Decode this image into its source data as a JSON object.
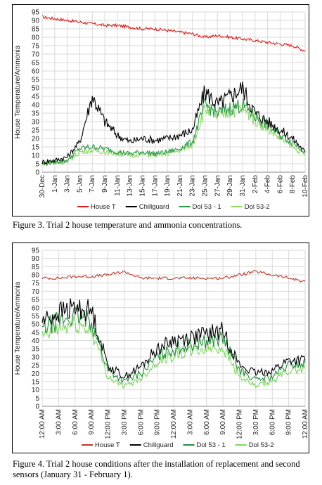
{
  "chart_data": [
    {
      "type": "line",
      "ylabel": "House Temperature/Ammonia",
      "xlabel": "",
      "ylim": [
        0,
        95
      ],
      "yticks": [
        0,
        5,
        10,
        15,
        20,
        25,
        30,
        35,
        40,
        45,
        50,
        55,
        60,
        65,
        70,
        75,
        80,
        85,
        90,
        95
      ],
      "categories": [
        "30-Dec",
        "1-Jan",
        "3-Jan",
        "5-Jan",
        "7-Jan",
        "9-Jan",
        "11-Jan",
        "13-Jan",
        "15-Jan",
        "17-Jan",
        "19-Jan",
        "21-Jan",
        "23-Jan",
        "25-Jan",
        "27-Jan",
        "29-Jan",
        "31-Jan",
        "2-Feb",
        "4-Feb",
        "6-Feb",
        "8-Feb",
        "10-Feb"
      ],
      "grid": true,
      "legend_position": "bottom",
      "series": [
        {
          "name": "House T",
          "color": "#e01b1b",
          "values": [
            92,
            91,
            90,
            89,
            88,
            87,
            87,
            86,
            85,
            85,
            84,
            83,
            82,
            80,
            81,
            80,
            79,
            78,
            77,
            76,
            75,
            72
          ]
        },
        {
          "name": "Chillguard",
          "color": "#000000",
          "values": [
            6,
            7,
            9,
            18,
            45,
            30,
            22,
            18,
            20,
            19,
            20,
            22,
            25,
            48,
            40,
            45,
            50,
            35,
            30,
            25,
            20,
            12
          ]
        },
        {
          "name": "Dol 53 - 1",
          "color": "#2e9a48",
          "values": [
            5,
            6,
            7,
            14,
            15,
            14,
            12,
            11,
            12,
            11,
            12,
            14,
            18,
            40,
            35,
            38,
            40,
            33,
            28,
            22,
            18,
            12
          ]
        },
        {
          "name": "Dol 53-2",
          "color": "#8fd866",
          "values": [
            5,
            6,
            6,
            12,
            13,
            12,
            11,
            10,
            11,
            10,
            11,
            13,
            16,
            38,
            33,
            36,
            38,
            31,
            26,
            20,
            15,
            10
          ]
        }
      ]
    },
    {
      "type": "line",
      "ylabel": "House Temperature/Ammonia",
      "xlabel": "",
      "ylim": [
        0,
        95
      ],
      "yticks": [
        0,
        5,
        10,
        15,
        20,
        25,
        30,
        35,
        40,
        45,
        50,
        55,
        60,
        65,
        70,
        75,
        80,
        85,
        90,
        95
      ],
      "categories": [
        "12:00 AM",
        "3:00 AM",
        "6:00 AM",
        "9:00 AM",
        "12:00 PM",
        "3:00 PM",
        "6:00 PM",
        "9:00 PM",
        "12:00 AM",
        "3:00 AM",
        "6:00 AM",
        "9:00 AM",
        "12:00 PM",
        "3:00 PM",
        "6:00 PM",
        "9:00 PM",
        "12:00 AM"
      ],
      "grid": true,
      "legend_position": "bottom",
      "series": [
        {
          "name": "House T",
          "color": "#c0392b",
          "values": [
            78,
            78,
            79,
            79,
            80,
            82,
            78,
            78,
            78,
            78,
            78,
            78,
            80,
            82,
            80,
            78,
            76
          ]
        },
        {
          "name": "Chillguard",
          "color": "#000000",
          "values": [
            52,
            57,
            60,
            58,
            25,
            18,
            24,
            35,
            40,
            42,
            44,
            46,
            25,
            20,
            22,
            28,
            28
          ]
        },
        {
          "name": "Dol 53 - 1",
          "color": "#1f8f3a",
          "values": [
            47,
            52,
            55,
            52,
            22,
            15,
            20,
            30,
            35,
            37,
            40,
            41,
            22,
            16,
            18,
            25,
            26
          ]
        },
        {
          "name": "Dol 53-2",
          "color": "#7cd65a",
          "values": [
            42,
            47,
            50,
            46,
            18,
            12,
            17,
            27,
            31,
            33,
            35,
            36,
            18,
            12,
            15,
            22,
            23
          ]
        }
      ]
    }
  ],
  "captions": {
    "figure3": "Figure 3.  Trial 2 house temperature and ammonia concentrations.",
    "figure4": "Figure 4.  Trial 2 house conditions after the installation of replacement and second sensors (January 31 - February 1)."
  }
}
